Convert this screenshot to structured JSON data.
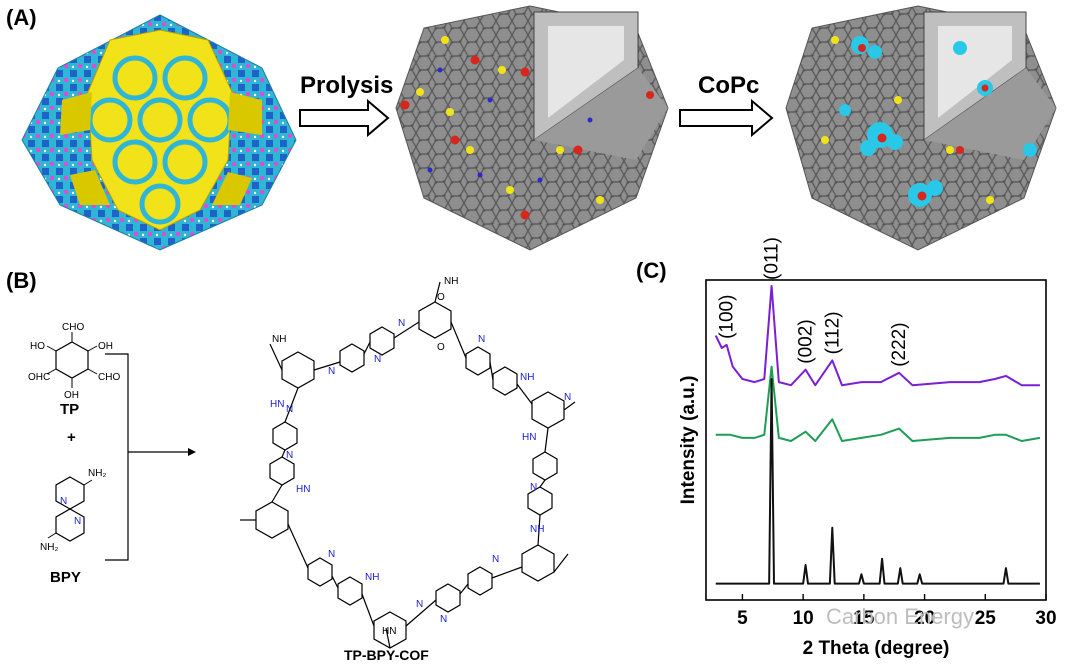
{
  "panels": {
    "a": "(A)",
    "b": "(B)",
    "c": "(C)"
  },
  "arrows": {
    "first": "Prolysis",
    "second": "CoPc"
  },
  "scheme": {
    "reagent1": "TP",
    "plus": "+",
    "reagent2": "BPY",
    "product": "TP-BPY-COF",
    "cho": "CHO",
    "ho": "HO",
    "oh": "OH",
    "ohc": "OHC",
    "nh2": "NH₂",
    "n": "N",
    "o": "O",
    "nh": "NH",
    "hn": "HN"
  },
  "colors": {
    "purple": "#7a1fd6",
    "green": "#1e9e55",
    "black": "#111111",
    "gold": "#f2e21a",
    "frame": "#2fb5d6",
    "carbon": "#7d7d7d",
    "cyan": "#29c7e8"
  },
  "chart_data": {
    "type": "line",
    "xlabel": "2 Theta (degree)",
    "ylabel": "Intensity (a.u.)",
    "xlim": [
      2,
      30
    ],
    "xticks": [
      5,
      10,
      15,
      20,
      25,
      30
    ],
    "peak_labels": [
      {
        "text": "(100)",
        "x": 3.7
      },
      {
        "text": "(011)",
        "x": 7.4
      },
      {
        "text": "(002)",
        "x": 10.2
      },
      {
        "text": "(112)",
        "x": 12.4
      },
      {
        "text": "(222)",
        "x": 17.9
      }
    ],
    "series": [
      {
        "color": "#7a1fd6",
        "x": [
          2.8,
          3.3,
          3.7,
          4.2,
          5.0,
          6.0,
          6.8,
          7.4,
          8.0,
          9.0,
          10.2,
          11.0,
          12.4,
          13.2,
          14.8,
          16.4,
          17.9,
          19.0,
          22.1,
          24.5,
          25.8,
          26.7,
          28.0,
          29.5
        ],
        "y": [
          0.84,
          0.8,
          0.81,
          0.74,
          0.7,
          0.69,
          0.7,
          1.0,
          0.69,
          0.68,
          0.73,
          0.68,
          0.76,
          0.68,
          0.69,
          0.69,
          0.72,
          0.68,
          0.69,
          0.69,
          0.7,
          0.71,
          0.68,
          0.68
        ]
      },
      {
        "color": "#1e9e55",
        "x": [
          2.8,
          4.0,
          5.0,
          6.0,
          6.8,
          7.4,
          8.0,
          9.0,
          10.2,
          11.0,
          12.4,
          13.2,
          14.8,
          16.4,
          17.9,
          19.0,
          22.1,
          24.5,
          25.8,
          26.7,
          28.0,
          29.5
        ],
        "y": [
          0.52,
          0.52,
          0.51,
          0.51,
          0.52,
          0.74,
          0.51,
          0.5,
          0.53,
          0.5,
          0.57,
          0.5,
          0.51,
          0.52,
          0.54,
          0.5,
          0.51,
          0.51,
          0.52,
          0.52,
          0.5,
          0.51
        ]
      },
      {
        "color": "#111111",
        "x": [
          2.8,
          6.0,
          7.2,
          7.4,
          7.6,
          10.0,
          10.2,
          10.4,
          12.2,
          12.4,
          12.6,
          14.6,
          14.8,
          15.0,
          16.3,
          16.5,
          16.7,
          17.8,
          18.0,
          18.2,
          19.4,
          19.6,
          19.8,
          26.5,
          26.7,
          26.9,
          29.5
        ],
        "y": [
          0.04,
          0.04,
          0.04,
          0.7,
          0.04,
          0.04,
          0.1,
          0.04,
          0.04,
          0.22,
          0.04,
          0.04,
          0.07,
          0.04,
          0.04,
          0.12,
          0.04,
          0.04,
          0.09,
          0.04,
          0.04,
          0.07,
          0.04,
          0.04,
          0.09,
          0.04,
          0.04
        ]
      }
    ]
  },
  "watermark": "Carbon Energy"
}
